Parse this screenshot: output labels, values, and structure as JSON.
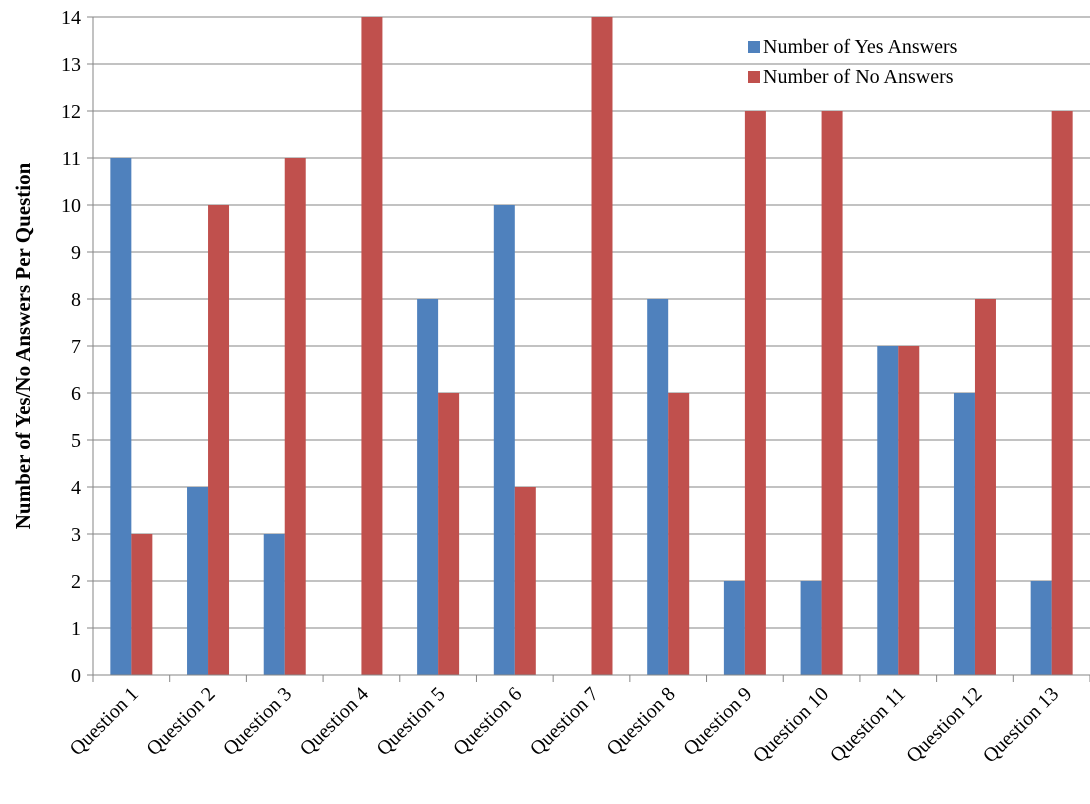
{
  "chart_data": {
    "type": "bar",
    "title": "",
    "xlabel": "",
    "ylabel": "Number of Yes/No Answers Per Question",
    "ylim": [
      0,
      14
    ],
    "yticks": [
      "0",
      "1",
      "2",
      "3",
      "4",
      "5",
      "6",
      "7",
      "8",
      "9",
      "10",
      "11",
      "12",
      "13",
      "14"
    ],
    "grid": true,
    "legend_position": "top-right",
    "categories": [
      "Question 1",
      "Question 2",
      "Question 3",
      "Question 4",
      "Question 5",
      "Question 6",
      "Question 7",
      "Question 8",
      "Question 9",
      "Question 10",
      "Question 11",
      "Question 12",
      "Question 13"
    ],
    "series": [
      {
        "name": "Number of Yes Answers",
        "color": "#4F81BD",
        "values": [
          11,
          4,
          3,
          0,
          8,
          10,
          0,
          8,
          2,
          2,
          7,
          6,
          2
        ]
      },
      {
        "name": "Number of No Answers",
        "color": "#C0504D",
        "values": [
          3,
          10,
          11,
          14,
          6,
          4,
          14,
          6,
          12,
          12,
          7,
          8,
          12
        ]
      }
    ]
  }
}
